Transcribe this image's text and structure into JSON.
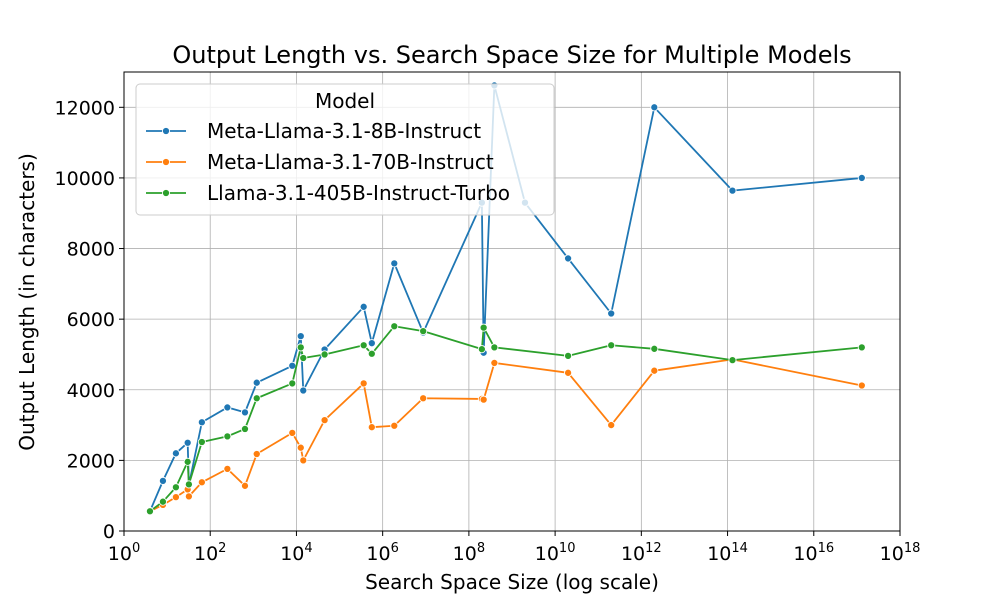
{
  "chart_data": {
    "type": "line",
    "title": "Output Length vs. Search Space Size for Multiple Models",
    "xlabel": "Search Space Size (log scale)",
    "ylabel": "Output Length (in characters)",
    "xscale": "log",
    "xlim": [
      1,
      1e+18
    ],
    "ylim": [
      0,
      13000
    ],
    "xticks": [
      1,
      100,
      10000,
      1000000,
      100000000,
      10000000000,
      1000000000000,
      100000000000000,
      10000000000000000,
      1000000000000000000
    ],
    "xtick_labels": [
      {
        "base": "10",
        "exp": "0"
      },
      {
        "base": "10",
        "exp": "2"
      },
      {
        "base": "10",
        "exp": "4"
      },
      {
        "base": "10",
        "exp": "6"
      },
      {
        "base": "10",
        "exp": "8"
      },
      {
        "base": "10",
        "exp": "10"
      },
      {
        "base": "10",
        "exp": "12"
      },
      {
        "base": "10",
        "exp": "14"
      },
      {
        "base": "10",
        "exp": "16"
      },
      {
        "base": "10",
        "exp": "18"
      }
    ],
    "yticks": [
      0,
      2000,
      4000,
      6000,
      8000,
      10000,
      12000
    ],
    "ytick_labels": [
      "0",
      "2000",
      "4000",
      "6000",
      "8000",
      "10000",
      "12000"
    ],
    "grid": true,
    "legend": {
      "title": "Model",
      "placement": "top-left"
    },
    "series": [
      {
        "name": "Meta-Llama-3.1-8B-Instruct",
        "color": "#1f77b4",
        "points": [
          [
            4,
            560
          ],
          [
            8,
            1420
          ],
          [
            16,
            2200
          ],
          [
            30,
            2500
          ],
          [
            32,
            1300
          ],
          [
            64,
            3080
          ],
          [
            250,
            3500
          ],
          [
            640,
            3360
          ],
          [
            1200,
            4200
          ],
          [
            8000,
            4680
          ],
          [
            12600,
            5520
          ],
          [
            14400,
            3980
          ],
          [
            45000,
            5140
          ],
          [
            362880,
            6350
          ],
          [
            560000,
            5320
          ],
          [
            1860000,
            7580
          ],
          [
            8700000,
            5620
          ],
          [
            200000000,
            9300
          ],
          [
            220000000,
            5050
          ],
          [
            390000000,
            12620
          ],
          [
            2000000000,
            9300
          ],
          [
            20000000000,
            7720
          ],
          [
            200000000000,
            6160
          ],
          [
            2000000000000,
            12000
          ],
          [
            130000000000000,
            9640
          ],
          [
            130000000000000000,
            10000
          ]
        ]
      },
      {
        "name": "Meta-Llama-3.1-70B-Instruct",
        "color": "#ff7f0e",
        "points": [
          [
            4,
            560
          ],
          [
            8,
            740
          ],
          [
            16,
            960
          ],
          [
            30,
            1180
          ],
          [
            32,
            980
          ],
          [
            64,
            1380
          ],
          [
            250,
            1760
          ],
          [
            640,
            1280
          ],
          [
            1200,
            2180
          ],
          [
            8000,
            2780
          ],
          [
            12600,
            2360
          ],
          [
            14400,
            2000
          ],
          [
            45000,
            3140
          ],
          [
            362880,
            4180
          ],
          [
            560000,
            2940
          ],
          [
            1860000,
            2980
          ],
          [
            8700000,
            3760
          ],
          [
            200000000,
            3740
          ],
          [
            220000000,
            3720
          ],
          [
            390000000,
            4760
          ],
          [
            20000000000,
            4480
          ],
          [
            200000000000,
            3000
          ],
          [
            2000000000000,
            4540
          ],
          [
            130000000000000,
            4860
          ],
          [
            130000000000000000,
            4120
          ]
        ]
      },
      {
        "name": "Llama-3.1-405B-Instruct-Turbo",
        "color": "#2ca02c",
        "points": [
          [
            4,
            560
          ],
          [
            8,
            830
          ],
          [
            16,
            1240
          ],
          [
            30,
            1960
          ],
          [
            32,
            1320
          ],
          [
            64,
            2520
          ],
          [
            250,
            2680
          ],
          [
            640,
            2890
          ],
          [
            1200,
            3760
          ],
          [
            8000,
            4180
          ],
          [
            12600,
            5200
          ],
          [
            14400,
            4900
          ],
          [
            45000,
            5000
          ],
          [
            362880,
            5260
          ],
          [
            560000,
            5020
          ],
          [
            1860000,
            5800
          ],
          [
            8700000,
            5660
          ],
          [
            200000000,
            5150
          ],
          [
            220000000,
            5760
          ],
          [
            390000000,
            5200
          ],
          [
            20000000000,
            4960
          ],
          [
            200000000000,
            5260
          ],
          [
            2000000000000,
            5160
          ],
          [
            130000000000000,
            4840
          ],
          [
            130000000000000000,
            5200
          ]
        ]
      }
    ]
  }
}
